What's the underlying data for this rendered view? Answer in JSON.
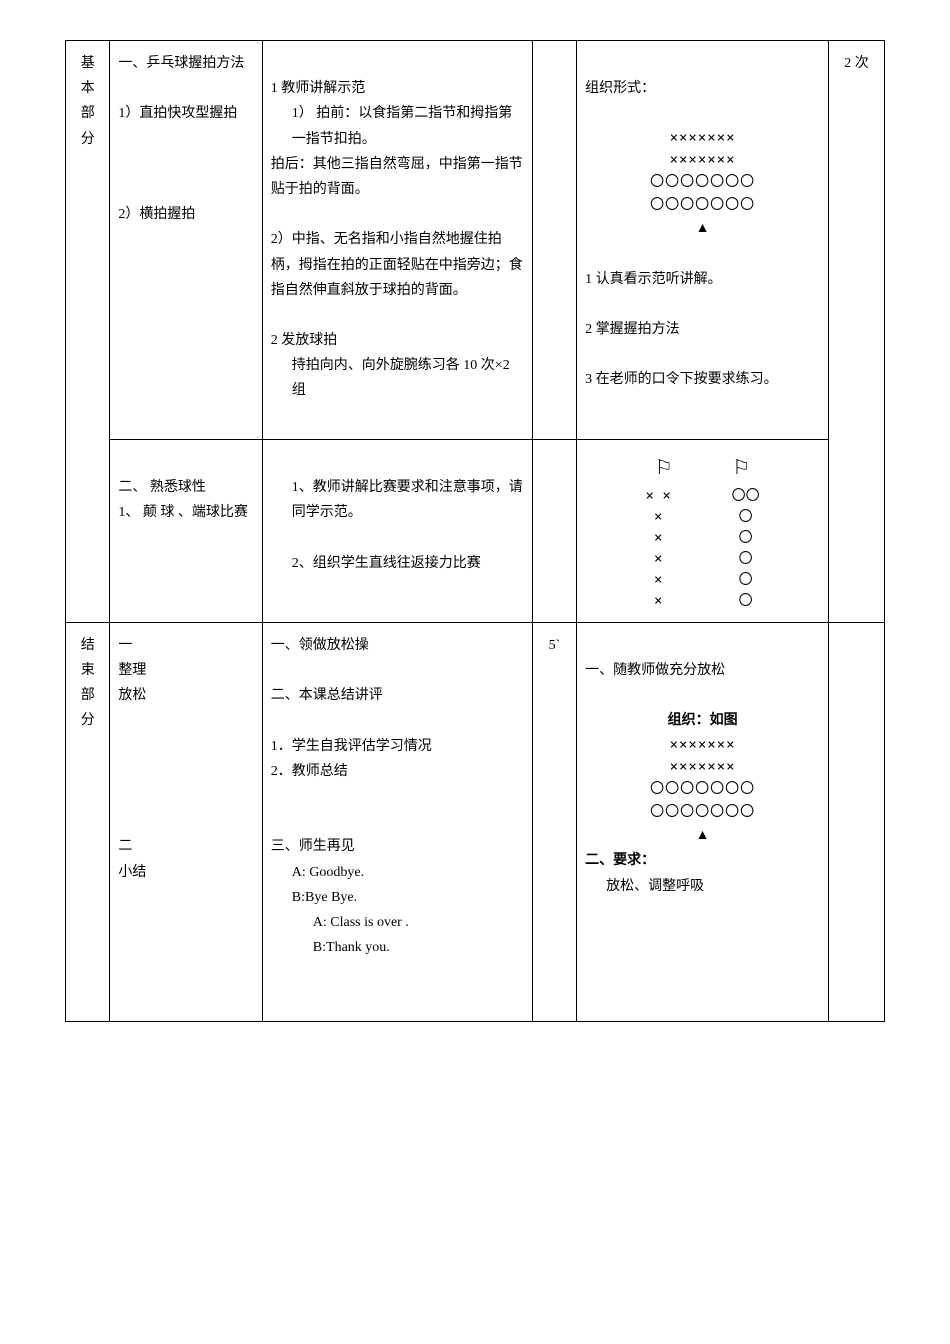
{
  "row1": {
    "section_label_1": "基",
    "section_label_2": "本",
    "section_label_3": "部",
    "section_label_4": "分",
    "col2_title": "一、乒乓球握拍方法",
    "col2_item1": "1）直拍快攻型握拍",
    "col2_item2": "2）横拍握拍",
    "col3_h1": "1 教师讲解示范",
    "col3_sub1": "1） 拍前：以食指第二指节和拇指第一指节扣拍。",
    "col3_sub1b": "拍后：其他三指自然弯屈，中指第一指节贴于拍的背面。",
    "col3_sub2": "2）中指、无名指和小指自然地握住拍柄，拇指在拍的正面轻贴在中指旁边；食指自然伸直斜放于球拍的背面。",
    "col3_h2": "2 发放球拍",
    "col3_h2_detail": "持拍向内、向外旋腕练习各 10 次×2 组",
    "col5_title": "组织形式：",
    "col5_formation_x": "×××××××",
    "col5_formation_o": "〇〇〇〇〇〇〇",
    "col5_req1": "1 认真看示范听讲解。",
    "col5_req2": "2 掌握握拍方法",
    "col5_req3": "3 在老师的口令下按要求练习。",
    "col6_count": "2 次"
  },
  "row2": {
    "col2_title": "二、 熟悉球性",
    "col2_item1": "1、 颠 球 、端球比赛",
    "col3_p1": "1、教师讲解比赛要求和注意事项，请同学示范。",
    "col3_p2": "2、组织学生直线往返接力比赛",
    "flag_symbol": "⚐",
    "relay_left_top": "×  ×",
    "relay_left_rows": "×",
    "relay_right_top": "〇〇",
    "relay_right_rows": "〇"
  },
  "row3": {
    "section_label_1": "结",
    "section_label_2": "束",
    "section_label_3": "部",
    "section_label_4": "分",
    "col2_block1_label": "一",
    "col2_block1_item1": "整理",
    "col2_block1_item2": "放松",
    "col2_block2_label": "二",
    "col2_block2_item": "小结",
    "col3_h1": "一、领做放松操",
    "col3_h2": "二、本课总结讲评",
    "col3_li1": "1．学生自我评估学习情况",
    "col3_li2": "2．教师总结",
    "col3_h3": "三、师生再见",
    "col3_dlg_a1": "A: Goodbye.",
    "col3_dlg_b1": "B:Bye Bye.",
    "col3_dlg_a2": "A: Class is over .",
    "col3_dlg_b2": "B:Thank you.",
    "col4_time": "5`",
    "col5_h1": "一、随教师做充分放松",
    "col5_org_label": "组织：如图",
    "col5_formation_x": "×××××××",
    "col5_formation_o": "〇〇〇〇〇〇〇",
    "col5_h2": "二、要求：",
    "col5_req": "放松、调整呼吸"
  }
}
